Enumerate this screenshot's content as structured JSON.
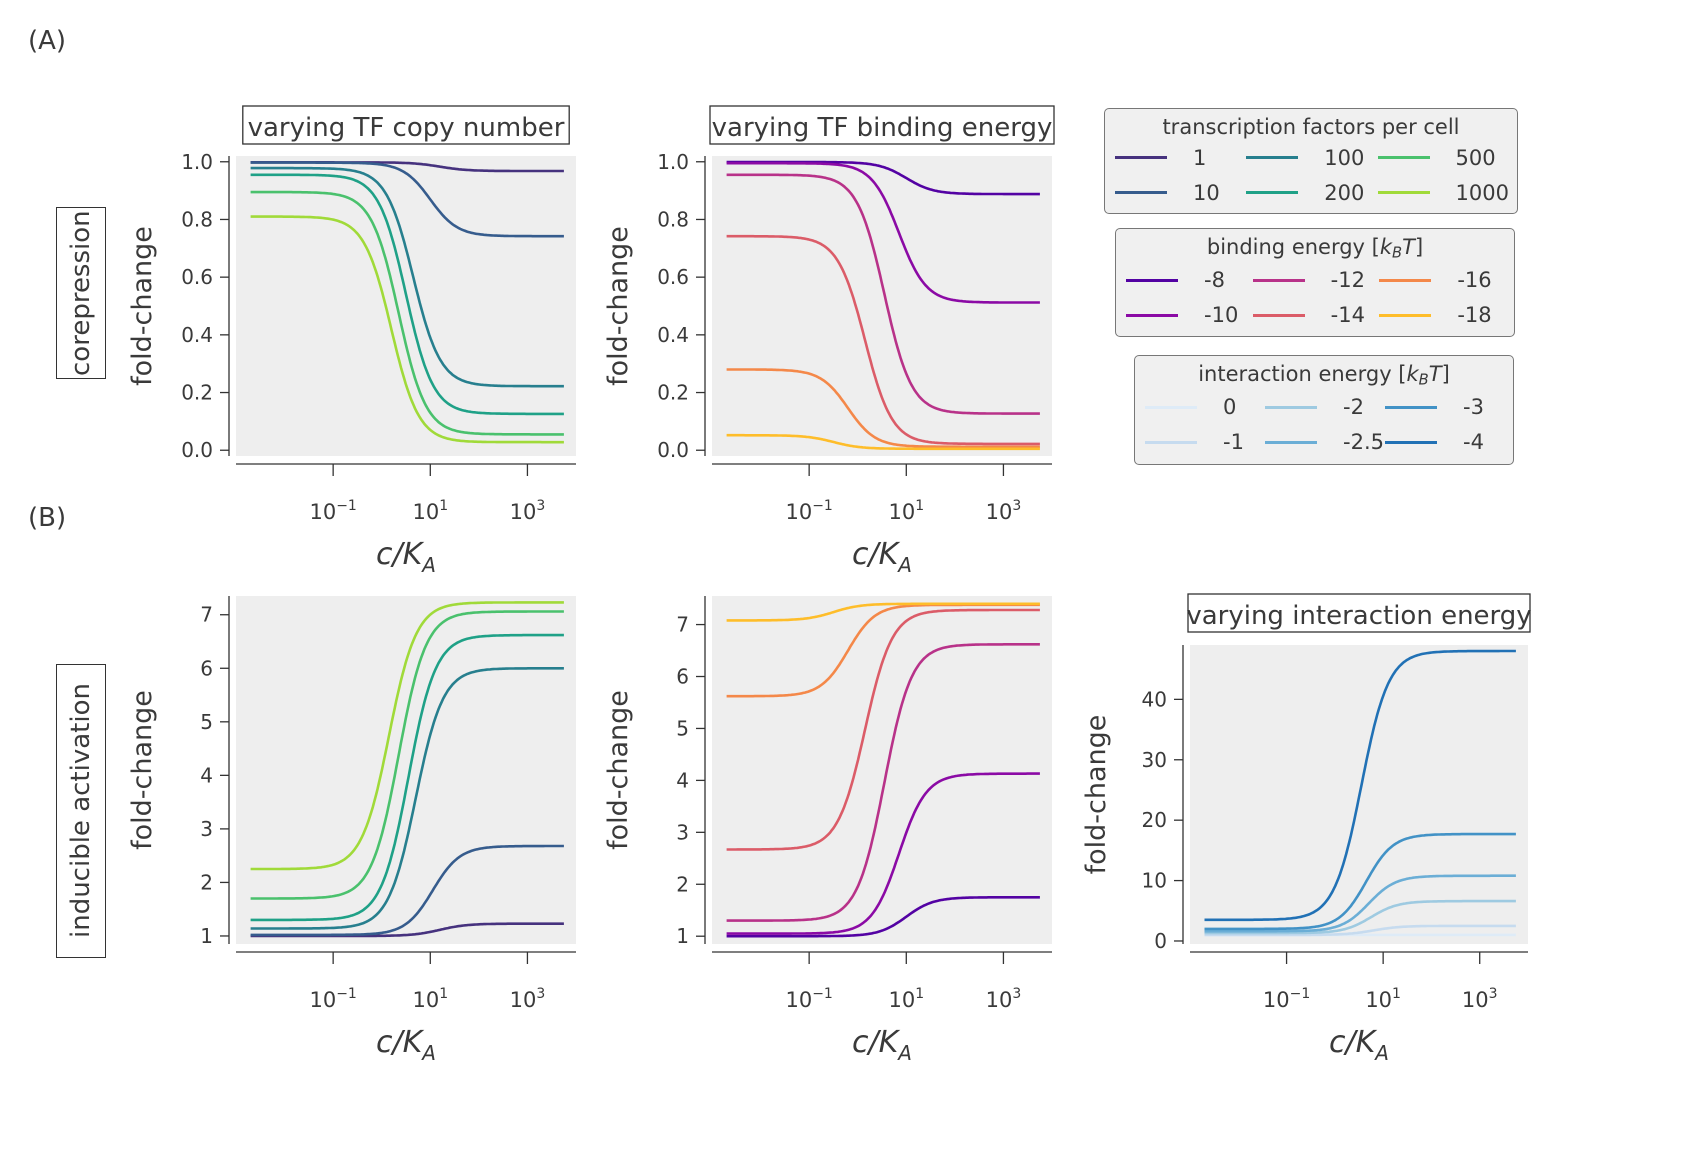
{
  "panel_labels": {
    "A": "(A)",
    "B": "(B)"
  },
  "row_labels": {
    "top": "corepression",
    "bottom": "inducible activation"
  },
  "colors": {
    "axes_background": "#eeeeee",
    "text": "#3a3a3a",
    "copy_number": [
      "#46327e",
      "#365c8d",
      "#277f8e",
      "#1fa187",
      "#4ac16d",
      "#a0da39"
    ],
    "binding_energy": [
      "#5302a3",
      "#8b0aa5",
      "#b83289",
      "#db5c68",
      "#f48849",
      "#febd2a"
    ],
    "interaction_energy": [
      "#deebf7",
      "#c6dbef",
      "#9ecae1",
      "#6baed6",
      "#4292c6",
      "#2171b5"
    ]
  },
  "legends": {
    "copy_number": {
      "title": "transcription factors per cell",
      "entries": [
        "1",
        "10",
        "100",
        "200",
        "500",
        "1000"
      ]
    },
    "binding_energy": {
      "title_pre": "binding energy [",
      "title_kb": "k",
      "title_sub": "B",
      "title_T": "T",
      "title_post": "]",
      "entries": [
        "-8",
        "-10",
        "-12",
        "-14",
        "-16",
        "-18"
      ]
    },
    "interaction_energy": {
      "title_pre": "interaction energy [",
      "title_kb": "k",
      "title_sub": "B",
      "title_T": "T",
      "title_post": "]",
      "entries": [
        "0",
        "-1",
        "-2",
        "-2.5",
        "-3",
        "-4"
      ]
    }
  },
  "chart_data": [
    {
      "id": "corep-copy",
      "type": "line",
      "title": "varying TF copy number",
      "xlabel": "c/K_A",
      "ylabel": "fold-change",
      "xscale": "log",
      "xlim_log10": [
        -3,
        4
      ],
      "ylim": [
        -0.02,
        1.02
      ],
      "xticks": [
        "10^-1",
        "10^1",
        "10^3"
      ],
      "yticks": [
        "0.0",
        "0.2",
        "0.4",
        "0.6",
        "0.8",
        "1.0"
      ],
      "legend": "copy_number",
      "series": [
        {
          "name": "1",
          "start": 0.998,
          "end": 0.968,
          "mid_log10": 1.2,
          "width": 0.28
        },
        {
          "name": "10",
          "start": 0.997,
          "end": 0.742,
          "mid_log10": 1.0,
          "width": 0.28
        },
        {
          "name": "100",
          "start": 0.978,
          "end": 0.222,
          "mid_log10": 0.65,
          "width": 0.28
        },
        {
          "name": "200",
          "start": 0.955,
          "end": 0.126,
          "mid_log10": 0.5,
          "width": 0.28
        },
        {
          "name": "500",
          "start": 0.895,
          "end": 0.055,
          "mid_log10": 0.35,
          "width": 0.28
        },
        {
          "name": "1000",
          "start": 0.81,
          "end": 0.028,
          "mid_log10": 0.2,
          "width": 0.28
        }
      ]
    },
    {
      "id": "corep-energy",
      "type": "line",
      "title": "varying TF binding energy",
      "xlabel": "c/K_A",
      "ylabel": "fold-change",
      "xscale": "log",
      "xlim_log10": [
        -3,
        4
      ],
      "ylim": [
        -0.02,
        1.02
      ],
      "xticks": [
        "10^-1",
        "10^1",
        "10^3"
      ],
      "yticks": [
        "0.0",
        "0.2",
        "0.4",
        "0.6",
        "0.8",
        "1.0"
      ],
      "legend": "binding_energy",
      "series": [
        {
          "name": "-8",
          "start": 0.999,
          "end": 0.888,
          "mid_log10": 1.0,
          "width": 0.28
        },
        {
          "name": "-10",
          "start": 0.995,
          "end": 0.512,
          "mid_log10": 0.85,
          "width": 0.28
        },
        {
          "name": "-12",
          "start": 0.955,
          "end": 0.127,
          "mid_log10": 0.55,
          "width": 0.28
        },
        {
          "name": "-14",
          "start": 0.742,
          "end": 0.022,
          "mid_log10": 0.15,
          "width": 0.28
        },
        {
          "name": "-16",
          "start": 0.28,
          "end": 0.012,
          "mid_log10": -0.2,
          "width": 0.28
        },
        {
          "name": "-18",
          "start": 0.052,
          "end": 0.005,
          "mid_log10": -0.5,
          "width": 0.28
        }
      ]
    },
    {
      "id": "act-copy",
      "type": "line",
      "title": "",
      "xlabel": "c/K_A",
      "ylabel": "fold-change",
      "xscale": "log",
      "xlim_log10": [
        -3,
        4
      ],
      "ylim": [
        0.85,
        7.35
      ],
      "xticks": [
        "10^-1",
        "10^1",
        "10^3"
      ],
      "yticks": [
        "1",
        "2",
        "3",
        "4",
        "5",
        "6",
        "7"
      ],
      "legend": "copy_number",
      "series": [
        {
          "name": "1",
          "start": 1.0,
          "end": 1.23,
          "mid_log10": 1.2,
          "width": 0.28
        },
        {
          "name": "10",
          "start": 1.02,
          "end": 2.68,
          "mid_log10": 1.05,
          "width": 0.28
        },
        {
          "name": "100",
          "start": 1.14,
          "end": 6.0,
          "mid_log10": 0.7,
          "width": 0.28
        },
        {
          "name": "200",
          "start": 1.3,
          "end": 6.62,
          "mid_log10": 0.55,
          "width": 0.28
        },
        {
          "name": "500",
          "start": 1.7,
          "end": 7.06,
          "mid_log10": 0.35,
          "width": 0.28
        },
        {
          "name": "1000",
          "start": 2.25,
          "end": 7.23,
          "mid_log10": 0.15,
          "width": 0.28
        }
      ]
    },
    {
      "id": "act-energy",
      "type": "line",
      "title": "",
      "xlabel": "c/K_A",
      "ylabel": "fold-change",
      "xscale": "log",
      "xlim_log10": [
        -3,
        4
      ],
      "ylim": [
        0.85,
        7.55
      ],
      "xticks": [
        "10^-1",
        "10^1",
        "10^3"
      ],
      "yticks": [
        "1",
        "2",
        "3",
        "4",
        "5",
        "6",
        "7"
      ],
      "legend": "binding_energy",
      "series": [
        {
          "name": "-8",
          "start": 1.0,
          "end": 1.75,
          "mid_log10": 1.0,
          "width": 0.28
        },
        {
          "name": "-10",
          "start": 1.05,
          "end": 4.13,
          "mid_log10": 0.85,
          "width": 0.28
        },
        {
          "name": "-12",
          "start": 1.3,
          "end": 6.62,
          "mid_log10": 0.55,
          "width": 0.28
        },
        {
          "name": "-14",
          "start": 2.67,
          "end": 7.28,
          "mid_log10": 0.15,
          "width": 0.28
        },
        {
          "name": "-16",
          "start": 5.62,
          "end": 7.38,
          "mid_log10": -0.2,
          "width": 0.28
        },
        {
          "name": "-18",
          "start": 7.08,
          "end": 7.4,
          "mid_log10": -0.5,
          "width": 0.28
        }
      ]
    },
    {
      "id": "act-interaction",
      "type": "line",
      "title": "varying interaction energy",
      "xlabel": "c/K_A",
      "ylabel": "fold-change",
      "xscale": "log",
      "xlim_log10": [
        -3,
        4
      ],
      "ylim": [
        -0.5,
        49
      ],
      "xticks": [
        "10^-1",
        "10^1",
        "10^3"
      ],
      "yticks": [
        "0",
        "10",
        "20",
        "30",
        "40"
      ],
      "legend": "interaction_energy",
      "series": [
        {
          "name": "0",
          "start": 1.0,
          "end": 1.0,
          "mid_log10": 0.6,
          "width": 0.28
        },
        {
          "name": "-1",
          "start": 1.0,
          "end": 2.5,
          "mid_log10": 0.8,
          "width": 0.28
        },
        {
          "name": "-2",
          "start": 1.3,
          "end": 6.6,
          "mid_log10": 0.75,
          "width": 0.28
        },
        {
          "name": "-2.5",
          "start": 1.6,
          "end": 10.8,
          "mid_log10": 0.7,
          "width": 0.28
        },
        {
          "name": "-3",
          "start": 2.0,
          "end": 17.7,
          "mid_log10": 0.65,
          "width": 0.28
        },
        {
          "name": "-4",
          "start": 3.5,
          "end": 48.0,
          "mid_log10": 0.55,
          "width": 0.28
        }
      ]
    }
  ]
}
